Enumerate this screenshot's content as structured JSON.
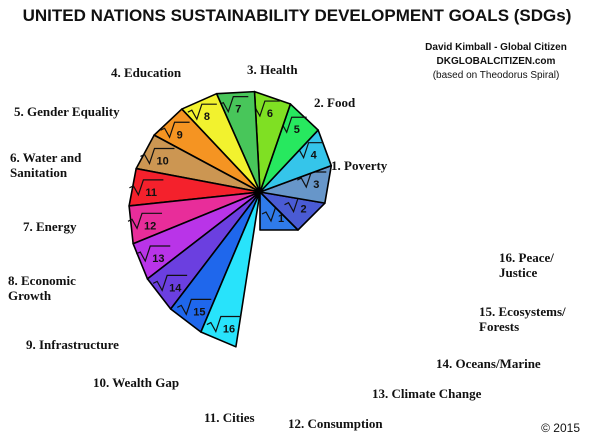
{
  "title": "UNITED NATIONS SUSTAINABILITY DEVELOPMENT GOALS (SDGs)",
  "credit": {
    "author": "David Kimball - Global Citizen",
    "site": "DKGLOBALCITIZEN.com",
    "note": "(based on Theodorus Spiral)"
  },
  "copyright": "© 2015",
  "goals": [
    {
      "n": "1",
      "label": "1.  Poverty",
      "color": "#2f7bea"
    },
    {
      "n": "2",
      "label": "2.  Food",
      "color": "#4a5bd4"
    },
    {
      "n": "3",
      "label": "3.  Health",
      "color": "#6796c9"
    },
    {
      "n": "4",
      "label": "4.  Education",
      "color": "#35c5ea"
    },
    {
      "n": "5",
      "label": "5.  Gender Equality",
      "color": "#27e85f"
    },
    {
      "n": "6",
      "label": "6.  Water and Sanitation",
      "color": "#7fe023"
    },
    {
      "n": "7",
      "label": "7.  Energy",
      "color": "#48c65a"
    },
    {
      "n": "8",
      "label": "8.  Economic Growth",
      "color": "#f2f22e"
    },
    {
      "n": "9",
      "label": "9.  Infrastructure",
      "color": "#f59422"
    },
    {
      "n": "10",
      "label": "10.  Wealth Gap",
      "color": "#cc9652"
    },
    {
      "n": "11",
      "label": "11.  Cities",
      "color": "#f4212c"
    },
    {
      "n": "12",
      "label": "12.  Consumption",
      "color": "#e82d9a"
    },
    {
      "n": "13",
      "label": "13.  Climate Change",
      "color": "#b934e8"
    },
    {
      "n": "14",
      "label": "14.  Oceans/Marine",
      "color": "#6b3fe0"
    },
    {
      "n": "15",
      "label": "15.  Ecosystems/ Forests",
      "color": "#1f67ec"
    },
    {
      "n": "16",
      "label": "16.  Peace/ Justice",
      "color": "#28e3fb"
    }
  ]
}
